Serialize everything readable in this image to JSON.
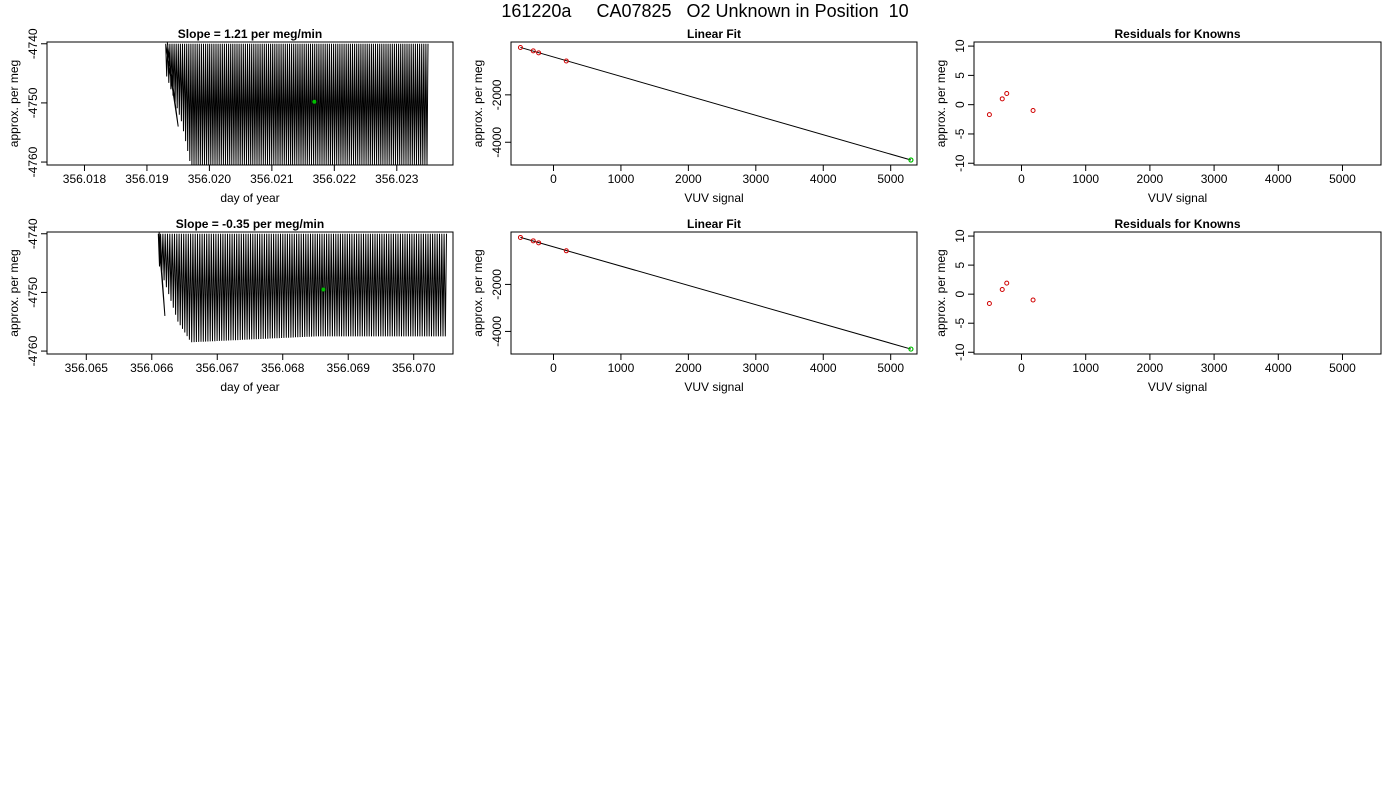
{
  "page_title": "161220a     CA07825   O2 Unknown in Position  10",
  "colors": {
    "trace": "#000000",
    "known_point": "#d00000",
    "unknown_point": "#00c000",
    "fit_line": "#000000",
    "frame": "#000000"
  },
  "chart_data": [
    {
      "panel": "row1-trace",
      "type": "line",
      "title": "Slope =  1.21  per meg/min",
      "xlabel": "day of year",
      "ylabel": "approx. per meg",
      "xlim": [
        356.0174,
        356.0239
      ],
      "ylim": [
        -4760.5,
        -4739.7
      ],
      "x_ticks": [
        356.018,
        356.019,
        356.02,
        356.021,
        356.022,
        356.023
      ],
      "x_tick_labels": [
        "356.018",
        "356.019",
        "356.020",
        "356.021",
        "356.022",
        "356.023"
      ],
      "y_ticks": [
        -4740,
        -4750,
        -4760
      ],
      "y_tick_labels": [
        "-4740",
        "-4750",
        "-4760"
      ],
      "trace": {
        "x_start": 356.0193,
        "x_end": 356.0235,
        "cycles": 125,
        "upper_envelope": [
          [
            356.0193,
            -4740
          ],
          [
            356.0235,
            -4740
          ]
        ],
        "lower_envelope": [
          [
            356.0193,
            -4745
          ],
          [
            356.01955,
            -4753
          ],
          [
            356.0197,
            -4760.5
          ],
          [
            356.0215,
            -4760.5
          ],
          [
            356.0235,
            -4760.5
          ]
        ],
        "edge_drop": {
          "x": 356.0195,
          "y": -4754
        }
      },
      "highlight_point": {
        "x": 356.02168,
        "y": -4749.8
      }
    },
    {
      "panel": "row1-linear",
      "type": "scatter",
      "title": "Linear Fit",
      "xlabel": "VUV signal",
      "ylabel": "approx. per meg",
      "xlim": [
        -630,
        5390
      ],
      "ylim": [
        -4960,
        230
      ],
      "x_ticks": [
        0,
        1000,
        2000,
        3000,
        4000,
        5000
      ],
      "x_tick_labels": [
        "0",
        "1000",
        "2000",
        "3000",
        "4000",
        "5000"
      ],
      "y_ticks": [
        -2000,
        -4000
      ],
      "y_tick_labels": [
        "-2000",
        "-4000"
      ],
      "fit_line": {
        "x": [
          -490,
          5300
        ],
        "y": [
          0,
          -4750
        ]
      },
      "known_points": [
        {
          "x": -490,
          "y": -2
        },
        {
          "x": -300,
          "y": -145
        },
        {
          "x": -220,
          "y": -230
        },
        {
          "x": 190,
          "y": -570
        }
      ],
      "unknown_points": [
        {
          "x": 5300,
          "y": -4750
        }
      ]
    },
    {
      "panel": "row1-residuals",
      "type": "scatter",
      "title": "Residuals for Knowns",
      "xlabel": "VUV signal",
      "ylabel": "approx. per meg",
      "xlim": [
        -740,
        5600
      ],
      "ylim": [
        -10.3,
        10.7
      ],
      "x_ticks": [
        0,
        1000,
        2000,
        3000,
        4000,
        5000
      ],
      "x_tick_labels": [
        "0",
        "1000",
        "2000",
        "3000",
        "4000",
        "5000"
      ],
      "y_ticks": [
        10,
        5,
        0,
        -5,
        -10
      ],
      "y_tick_labels": [
        "10",
        "5",
        "0",
        "-5",
        "-10"
      ],
      "known_points": [
        {
          "x": -500,
          "y": -1.7
        },
        {
          "x": -300,
          "y": 1.0
        },
        {
          "x": -230,
          "y": 1.9
        },
        {
          "x": 180,
          "y": -1.0
        }
      ]
    },
    {
      "panel": "row2-trace",
      "type": "line",
      "title": "Slope =  -0.35  per meg/min",
      "xlabel": "day of year",
      "ylabel": "approx. per meg",
      "xlim": [
        356.0644,
        356.0706
      ],
      "ylim": [
        -4760.5,
        -4739.7
      ],
      "x_ticks": [
        356.065,
        356.066,
        356.067,
        356.068,
        356.069,
        356.07
      ],
      "x_tick_labels": [
        "356.065",
        "356.066",
        "356.067",
        "356.068",
        "356.069",
        "356.070"
      ],
      "y_ticks": [
        -4740,
        -4750,
        -4760
      ],
      "y_tick_labels": [
        "-4740",
        "-4750",
        "-4760"
      ],
      "trace": {
        "x_start": 356.0661,
        "x_end": 356.0705,
        "cycles": 125,
        "upper_envelope": [
          [
            356.0661,
            -4740
          ],
          [
            356.0705,
            -4740
          ]
        ],
        "lower_envelope": [
          [
            356.0661,
            -4745
          ],
          [
            356.0664,
            -4755
          ],
          [
            356.0666,
            -4758.5
          ],
          [
            356.0685,
            -4757.5
          ],
          [
            356.0705,
            -4757.5
          ]
        ],
        "edge_drop": {
          "x": 356.0662,
          "y": -4754
        }
      },
      "highlight_point": {
        "x": 356.06862,
        "y": -4749.5
      }
    },
    {
      "panel": "row2-linear",
      "type": "scatter",
      "title": "Linear Fit",
      "xlabel": "VUV signal",
      "ylabel": "approx. per meg",
      "xlim": [
        -630,
        5390
      ],
      "ylim": [
        -4960,
        230
      ],
      "x_ticks": [
        0,
        1000,
        2000,
        3000,
        4000,
        5000
      ],
      "x_tick_labels": [
        "0",
        "1000",
        "2000",
        "3000",
        "4000",
        "5000"
      ],
      "y_ticks": [
        -2000,
        -4000
      ],
      "y_tick_labels": [
        "-2000",
        "-4000"
      ],
      "fit_line": {
        "x": [
          -490,
          5300
        ],
        "y": [
          0,
          -4750
        ]
      },
      "known_points": [
        {
          "x": -490,
          "y": -2
        },
        {
          "x": -300,
          "y": -145
        },
        {
          "x": -220,
          "y": -230
        },
        {
          "x": 190,
          "y": -570
        }
      ],
      "unknown_points": [
        {
          "x": 5300,
          "y": -4750
        }
      ]
    },
    {
      "panel": "row2-residuals",
      "type": "scatter",
      "title": "Residuals for Knowns",
      "xlabel": "VUV signal",
      "ylabel": "approx. per meg",
      "xlim": [
        -740,
        5600
      ],
      "ylim": [
        -10.3,
        10.7
      ],
      "x_ticks": [
        0,
        1000,
        2000,
        3000,
        4000,
        5000
      ],
      "x_tick_labels": [
        "0",
        "1000",
        "2000",
        "3000",
        "4000",
        "5000"
      ],
      "y_ticks": [
        10,
        5,
        0,
        -5,
        -10
      ],
      "y_tick_labels": [
        "10",
        "5",
        "0",
        "-5",
        "-10"
      ],
      "known_points": [
        {
          "x": -500,
          "y": -1.6
        },
        {
          "x": -300,
          "y": 0.8
        },
        {
          "x": -230,
          "y": 1.9
        },
        {
          "x": 180,
          "y": -1.0
        }
      ]
    }
  ]
}
